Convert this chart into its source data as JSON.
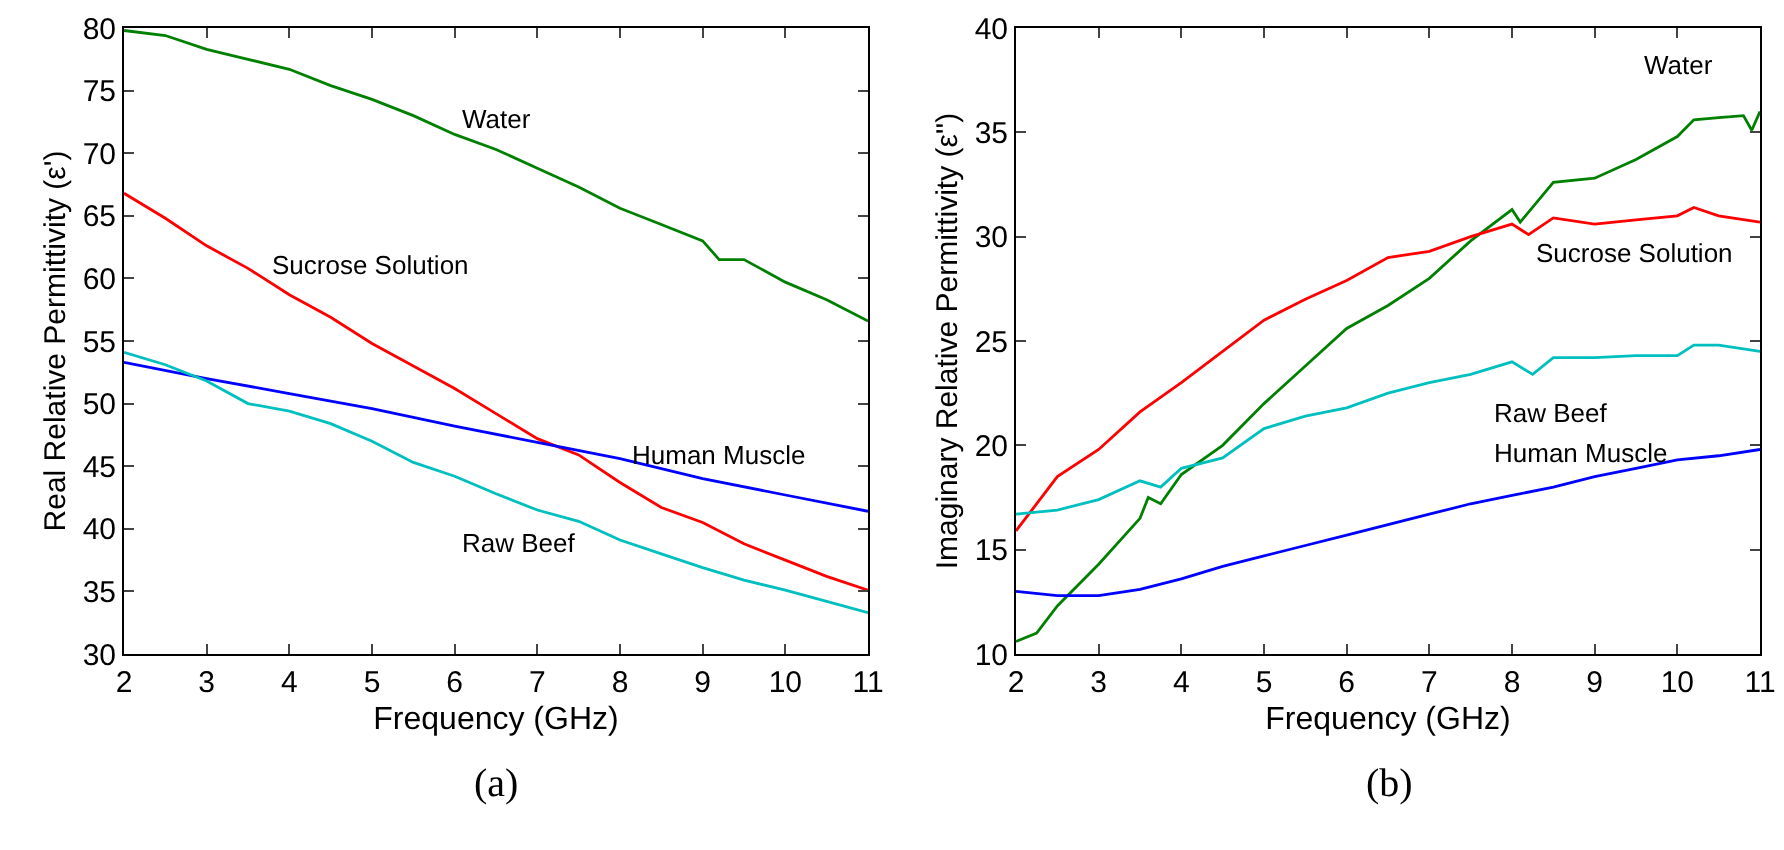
{
  "chart_data": [
    {
      "type": "line",
      "xlabel": "Frequency (GHz)",
      "ylabel": "Real Relative Permittivity (ε')",
      "annotations": [
        "(a)"
      ],
      "xlim": [
        2,
        11
      ],
      "xticks": [
        2,
        3,
        4,
        5,
        6,
        7,
        8,
        9,
        10,
        11
      ],
      "ylim": [
        30,
        80
      ],
      "yticks": [
        30,
        35,
        40,
        45,
        50,
        55,
        60,
        65,
        70,
        75,
        80
      ],
      "grid": false,
      "legend": false,
      "marker": "none",
      "line_style": "solid",
      "series": [
        {
          "name": "Water",
          "color": "#008000",
          "x": [
            2,
            2.5,
            3,
            3.5,
            4,
            4.5,
            5,
            5.5,
            6,
            6.5,
            7,
            7.5,
            8,
            8.5,
            9,
            9.2,
            9.5,
            10,
            10.5,
            11
          ],
          "values": [
            79.8,
            79.4,
            78.3,
            77.5,
            76.7,
            75.4,
            74.3,
            73.0,
            71.5,
            70.3,
            68.8,
            67.3,
            65.6,
            64.3,
            63.0,
            61.5,
            61.5,
            59.7,
            58.3,
            56.6
          ]
        },
        {
          "name": "Sucrose Solution",
          "color": "#ff0000",
          "x": [
            2,
            2.5,
            3,
            3.5,
            4,
            4.5,
            5,
            5.5,
            6,
            6.5,
            7,
            7.5,
            8,
            8.5,
            9,
            9.5,
            10,
            10.5,
            11
          ],
          "values": [
            66.8,
            64.8,
            62.6,
            60.8,
            58.7,
            56.9,
            54.8,
            53.0,
            51.2,
            49.2,
            47.2,
            45.9,
            43.7,
            41.7,
            40.5,
            38.8,
            37.5,
            36.2,
            35.1
          ]
        },
        {
          "name": "Human Muscle",
          "color": "#0000ff",
          "x": [
            2,
            3,
            4,
            5,
            6,
            7,
            8,
            9,
            10,
            11
          ],
          "values": [
            53.3,
            52.0,
            50.8,
            49.6,
            48.2,
            46.9,
            45.6,
            44.0,
            42.7,
            41.4
          ]
        },
        {
          "name": "Raw Beef",
          "color": "#00bfbf",
          "x": [
            2,
            2.5,
            3,
            3.5,
            4,
            4.5,
            5,
            5.5,
            6,
            6.5,
            7,
            7.5,
            8,
            8.5,
            9,
            9.5,
            10,
            10.5,
            11
          ],
          "values": [
            54.1,
            53.1,
            51.8,
            50.0,
            49.4,
            48.4,
            47.0,
            45.3,
            44.2,
            42.8,
            41.5,
            40.6,
            39.1,
            38.0,
            36.9,
            35.9,
            35.1,
            34.2,
            33.3
          ]
        }
      ]
    },
    {
      "type": "line",
      "xlabel": "Frequency (GHz)",
      "ylabel": "Imaginary Relative Permittivity (ε'')",
      "annotations": [
        "(b)"
      ],
      "xlim": [
        2,
        11
      ],
      "xticks": [
        2,
        3,
        4,
        5,
        6,
        7,
        8,
        9,
        10,
        11
      ],
      "ylim": [
        10,
        40
      ],
      "yticks": [
        10,
        15,
        20,
        25,
        30,
        35,
        40
      ],
      "grid": false,
      "legend": false,
      "marker": "none",
      "line_style": "solid",
      "series": [
        {
          "name": "Water",
          "color": "#008000",
          "x": [
            2,
            2.25,
            2.5,
            3,
            3.5,
            3.6,
            3.75,
            4,
            4.5,
            5,
            5.5,
            6,
            6.5,
            7,
            7.5,
            8,
            8.1,
            8.5,
            9,
            9.5,
            10,
            10.2,
            10.5,
            10.8,
            10.9,
            11
          ],
          "values": [
            10.6,
            11.0,
            12.3,
            14.3,
            16.5,
            17.5,
            17.2,
            18.6,
            20.0,
            22.0,
            23.8,
            25.6,
            26.7,
            28.0,
            29.8,
            31.3,
            30.7,
            32.6,
            32.8,
            33.7,
            34.8,
            35.6,
            35.7,
            35.8,
            35.1,
            36.0
          ]
        },
        {
          "name": "Sucrose Solution",
          "color": "#ff0000",
          "x": [
            2,
            2.5,
            3,
            3.5,
            4,
            4.5,
            5,
            5.5,
            6,
            6.5,
            7,
            7.5,
            8,
            8.2,
            8.5,
            9,
            9.5,
            10,
            10.2,
            10.5,
            11
          ],
          "values": [
            15.9,
            18.5,
            19.8,
            21.6,
            23.0,
            24.5,
            26.0,
            27.0,
            27.9,
            29.0,
            29.3,
            30.0,
            30.6,
            30.1,
            30.9,
            30.6,
            30.8,
            31.0,
            31.4,
            31.0,
            30.7
          ]
        },
        {
          "name": "Human Muscle",
          "color": "#0000ff",
          "x": [
            2,
            2.5,
            3,
            3.5,
            4,
            4.5,
            5,
            5.5,
            6,
            6.5,
            7,
            7.5,
            8,
            8.5,
            9,
            9.5,
            10,
            10.5,
            11
          ],
          "values": [
            13.0,
            12.8,
            12.8,
            13.1,
            13.6,
            14.2,
            14.7,
            15.2,
            15.7,
            16.2,
            16.7,
            17.2,
            17.6,
            18.0,
            18.5,
            18.9,
            19.3,
            19.5,
            19.8
          ]
        },
        {
          "name": "Raw Beef",
          "color": "#00bfbf",
          "x": [
            2,
            2.5,
            3,
            3.5,
            3.75,
            4,
            4.5,
            5,
            5.5,
            6,
            6.5,
            7,
            7.5,
            8,
            8.25,
            8.5,
            9,
            9.5,
            10,
            10.2,
            10.5,
            11
          ],
          "values": [
            16.7,
            16.9,
            17.4,
            18.3,
            18.0,
            18.9,
            19.4,
            20.8,
            21.4,
            21.8,
            22.5,
            23.0,
            23.4,
            24.0,
            23.4,
            24.2,
            24.2,
            24.3,
            24.3,
            24.8,
            24.8,
            24.5
          ]
        }
      ]
    }
  ]
}
